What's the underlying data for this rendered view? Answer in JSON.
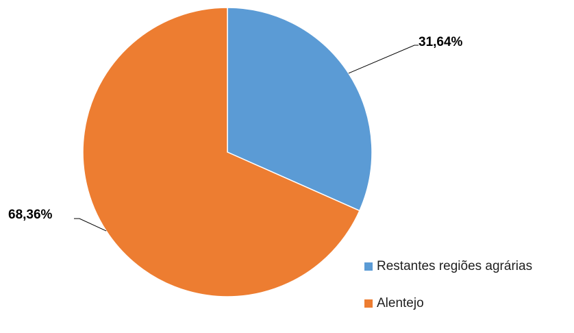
{
  "chart_data": {
    "type": "pie",
    "title": "",
    "slices": [
      {
        "label": "Restantes regiões agrárias",
        "value": 31.64,
        "value_label": "31,64%",
        "color": "#5B9BD5"
      },
      {
        "label": "Alentejo",
        "value": 68.36,
        "value_label": "68,36%",
        "color": "#ED7D31"
      }
    ],
    "legend_position": "bottom-right",
    "start_angle": "12 o'clock, clockwise"
  }
}
